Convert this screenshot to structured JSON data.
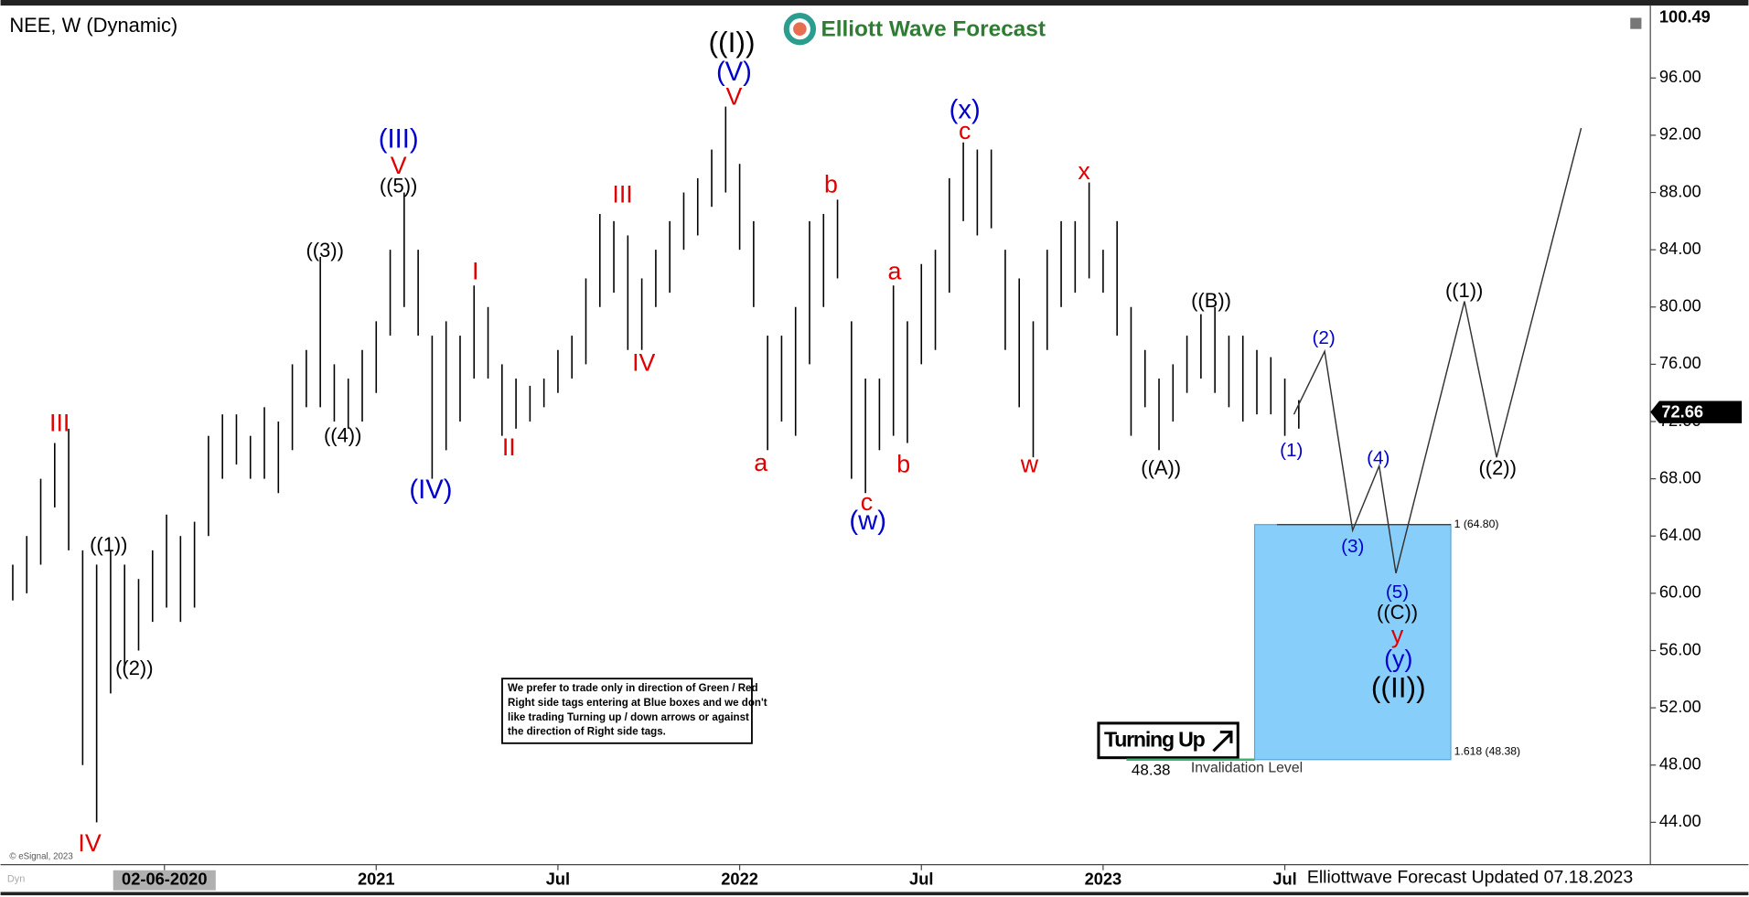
{
  "chart_data": {
    "type": "hilo",
    "title": "NEE, W (Dynamic)",
    "logo": "Elliott Wave Forecast",
    "footer": "Elliottwave Forecast Updated 07.18.2023",
    "copyright": "© eSignal, 2023",
    "corner": "Dyn",
    "bar_color": "#000000",
    "xlim": [
      -1.75,
      234.3
    ],
    "ylim": [
      41.04,
      101.06
    ],
    "xticks": [
      {
        "value": 21.7,
        "label": "02-06-2020"
      },
      {
        "value": 52,
        "label": "2021"
      },
      {
        "value": 78,
        "label": "Jul"
      },
      {
        "value": 104,
        "label": "2022"
      },
      {
        "value": 130,
        "label": "Jul"
      },
      {
        "value": 156,
        "label": "2023"
      },
      {
        "value": 182,
        "label": "Jul"
      }
    ],
    "yticks": [
      {
        "value": 44,
        "label": "44.00"
      },
      {
        "value": 48,
        "label": "48.00"
      },
      {
        "value": 52,
        "label": "52.00"
      },
      {
        "value": 56,
        "label": "56.00"
      },
      {
        "value": 60,
        "label": "60.00"
      },
      {
        "value": 64,
        "label": "64.00"
      },
      {
        "value": 68,
        "label": "68.00"
      },
      {
        "value": 72,
        "label": "72.00"
      },
      {
        "value": 76,
        "label": "76.00"
      },
      {
        "value": 80,
        "label": "80.00"
      },
      {
        "value": 84,
        "label": "84.00"
      },
      {
        "value": 88,
        "label": "88.00"
      },
      {
        "value": 92,
        "label": "92.00"
      },
      {
        "value": 96,
        "label": "96.00"
      }
    ],
    "top_price": 100.49,
    "last_price": 72.66,
    "x": [
      0,
      2,
      4,
      6,
      8,
      10,
      12,
      14,
      16,
      18,
      20,
      22,
      24,
      26,
      28,
      30,
      32,
      34,
      36,
      38,
      40,
      42,
      44,
      46,
      48,
      50,
      52,
      54,
      56,
      58,
      60,
      62,
      64,
      66,
      68,
      70,
      72,
      74,
      76,
      78,
      80,
      82,
      84,
      86,
      88,
      90,
      92,
      94,
      96,
      98,
      100,
      102,
      104,
      106,
      108,
      110,
      112,
      114,
      116,
      118,
      120,
      122,
      124,
      126,
      128,
      130,
      132,
      134,
      136,
      138,
      140,
      142,
      144,
      146,
      148,
      150,
      152,
      154,
      156,
      158,
      160,
      162,
      164,
      166,
      168,
      170,
      172,
      174,
      176,
      178,
      180,
      182,
      184
    ],
    "high": [
      62,
      64,
      68,
      70.5,
      71.5,
      63,
      62,
      63,
      62,
      61,
      63,
      65.5,
      64,
      65,
      71,
      72.5,
      72.5,
      71,
      73,
      72,
      76,
      77,
      83.5,
      76,
      75,
      77,
      79,
      84,
      88,
      84,
      78,
      79,
      78,
      81.5,
      80,
      76,
      75,
      74.5,
      75,
      77,
      78,
      82,
      86.5,
      86,
      85,
      82,
      84,
      86,
      88,
      89,
      91,
      94,
      90,
      86,
      78,
      78,
      80,
      86,
      86.5,
      87.5,
      79,
      75,
      75,
      81.5,
      79,
      83,
      84,
      89,
      91.5,
      91,
      91,
      84,
      82,
      79,
      84,
      86,
      86,
      88.7,
      84,
      86,
      80,
      77,
      75,
      76,
      78,
      79.5,
      80,
      78,
      78,
      77,
      76.5,
      75,
      73.5
    ],
    "low": [
      59.5,
      60,
      62,
      66,
      63,
      48,
      44,
      53,
      55,
      56,
      58,
      59,
      58,
      59,
      64,
      68,
      69,
      68,
      68,
      67,
      70,
      73,
      73,
      72,
      71.5,
      72,
      74,
      78,
      80,
      78,
      68,
      70,
      72,
      75,
      75,
      71,
      71.5,
      72,
      73,
      74,
      75,
      76,
      80,
      81,
      77,
      77,
      80,
      81,
      84,
      85,
      87,
      88,
      84,
      80,
      70,
      72,
      71,
      76,
      80,
      82,
      68,
      67,
      70,
      71,
      70.5,
      76,
      77,
      81,
      86,
      85,
      85.5,
      77,
      73,
      69.5,
      77,
      80,
      81,
      82,
      81,
      78,
      71,
      73,
      70,
      72,
      74,
      75,
      74,
      73,
      72,
      72.5,
      72.5,
      71,
      71.5
    ],
    "projection": {
      "color": "#333333",
      "x": [
        183.3,
        187.7,
        191.7,
        195.5,
        197.9,
        207.7,
        212.3,
        224.4
      ],
      "values": [
        72.5,
        76.9,
        64.4,
        68.9,
        61.4,
        80.4,
        69.5,
        92.5
      ]
    },
    "target_box": {
      "color": "#87cefa",
      "top": 64.8,
      "top_label": "1 (64.80)",
      "bottom": 48.38,
      "bottom_label": "1.618 (48.38)"
    },
    "invalidation": {
      "value": 48.38,
      "label": "Invalidation Level"
    },
    "tag": "Turning Up",
    "note": [
      "We prefer to trade only in direction of Green / Red",
      "Right side tags entering at Blue boxes and we don't",
      "like trading Turning up / down arrows or against",
      "the direction of Right side tags."
    ],
    "annotations": [
      {
        "text": "III",
        "color": "#e00000"
      },
      {
        "text": "IV",
        "color": "#e00000"
      },
      {
        "text": "((1))",
        "color": "#000000"
      },
      {
        "text": "((2))",
        "color": "#000000"
      },
      {
        "text": "((3))",
        "color": "#000000"
      },
      {
        "text": "((4))",
        "color": "#000000"
      },
      {
        "text": "(III)",
        "color": "#0000cc"
      },
      {
        "text": "V",
        "color": "#e00000"
      },
      {
        "text": "((5))",
        "color": "#000000"
      },
      {
        "text": "(IV)",
        "color": "#0000cc"
      },
      {
        "text": "I",
        "color": "#e00000"
      },
      {
        "text": "II",
        "color": "#e00000"
      },
      {
        "text": "III",
        "color": "#e00000"
      },
      {
        "text": "IV",
        "color": "#e00000"
      },
      {
        "text": "((I))",
        "color": "#000000"
      },
      {
        "text": "(V)",
        "color": "#0000cc"
      },
      {
        "text": "V",
        "color": "#e00000"
      },
      {
        "text": "a",
        "color": "#e00000"
      },
      {
        "text": "b",
        "color": "#e00000"
      },
      {
        "text": "a",
        "color": "#e00000"
      },
      {
        "text": "b",
        "color": "#e00000"
      },
      {
        "text": "c",
        "color": "#e00000"
      },
      {
        "text": "(w)",
        "color": "#0000cc"
      },
      {
        "text": "(x)",
        "color": "#0000cc"
      },
      {
        "text": "c",
        "color": "#e00000"
      },
      {
        "text": "x",
        "color": "#e00000"
      },
      {
        "text": "w",
        "color": "#e00000"
      },
      {
        "text": "((A))",
        "color": "#000000"
      },
      {
        "text": "((B))",
        "color": "#000000"
      },
      {
        "text": "(1)",
        "color": "#0000cc"
      },
      {
        "text": "(2)",
        "color": "#0000cc"
      },
      {
        "text": "(3)",
        "color": "#0000cc"
      },
      {
        "text": "(4)",
        "color": "#0000cc"
      },
      {
        "text": "(5)",
        "color": "#0000cc"
      },
      {
        "text": "((C))",
        "color": "#000000"
      },
      {
        "text": "y",
        "color": "#e00000"
      },
      {
        "text": "(y)",
        "color": "#0000cc"
      },
      {
        "text": "((II))",
        "color": "#000000"
      },
      {
        "text": "((1))",
        "color": "#000000"
      },
      {
        "text": "((2))",
        "color": "#000000"
      }
    ]
  }
}
